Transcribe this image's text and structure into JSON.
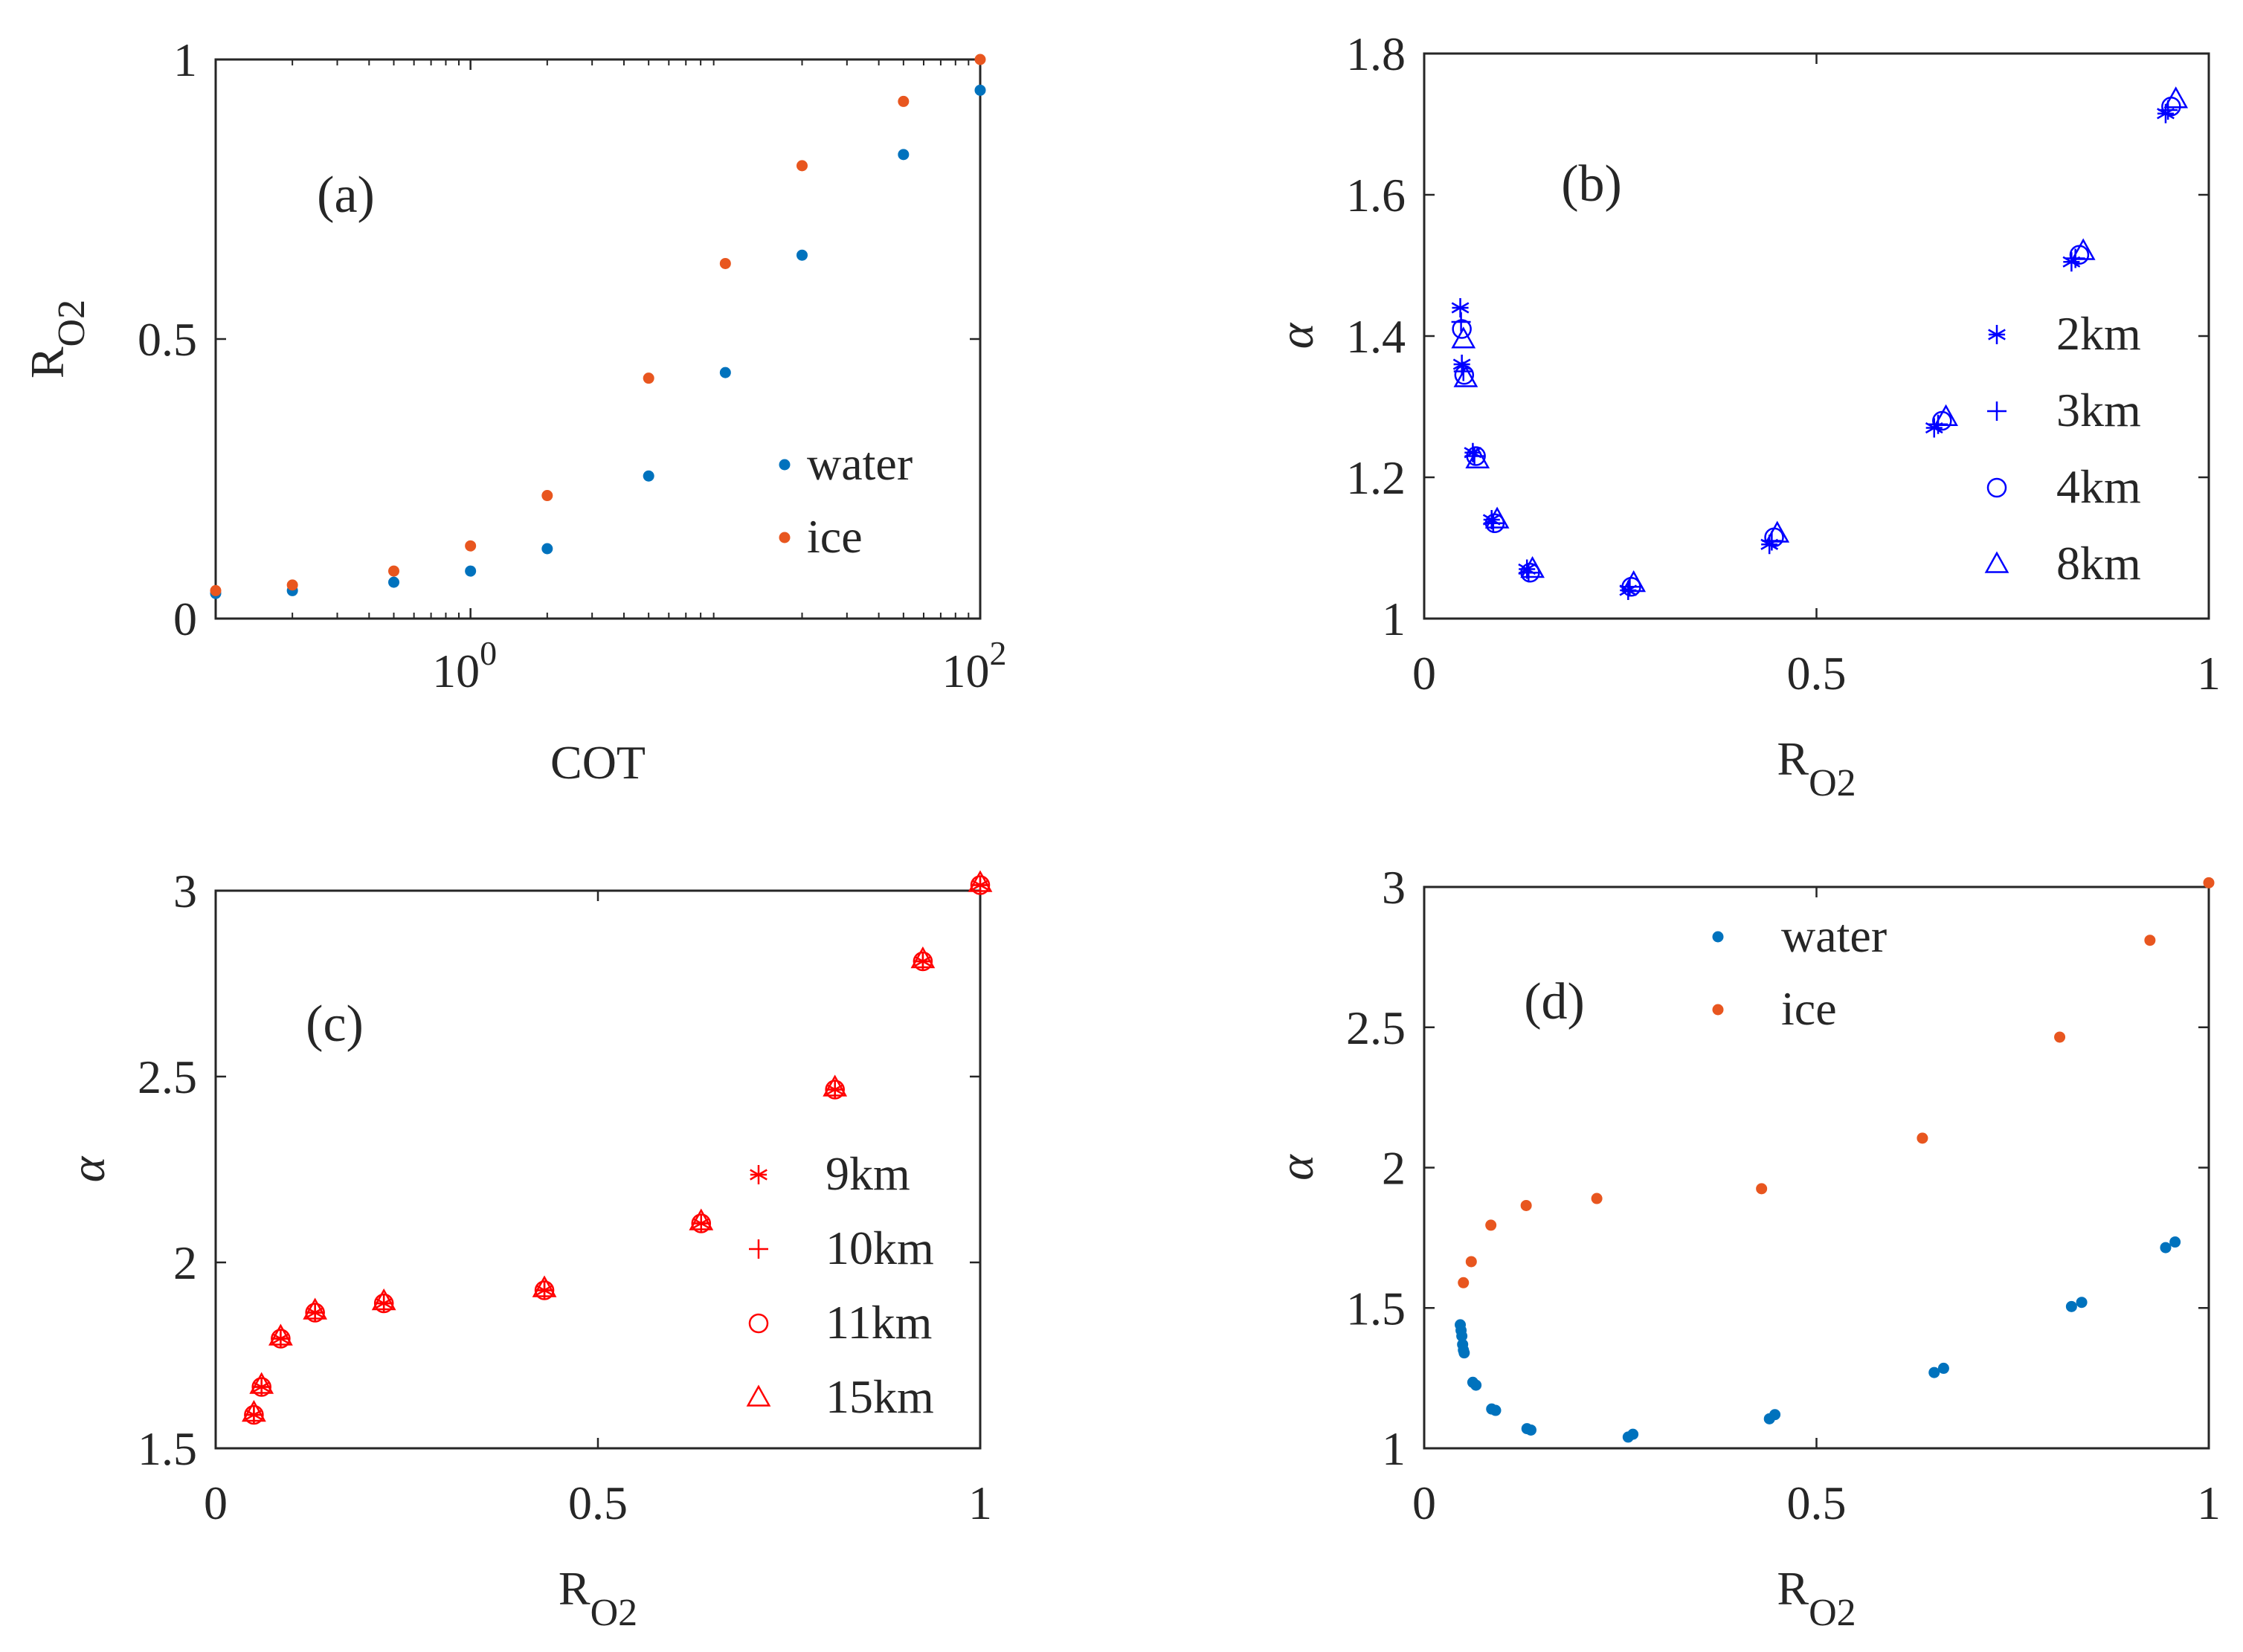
{
  "colors": {
    "water": "#0072BD",
    "ice": "#E8561F",
    "blue_markers": "#0000FF",
    "red_markers": "#FF0000",
    "axis": "#262626"
  },
  "chart_data": [
    {
      "id": "a",
      "type": "scatter",
      "panel_label": "(a)",
      "xscale": "log",
      "xlabel": "COT",
      "ylabel_main": "R",
      "ylabel_sub": "O2",
      "xlim": [
        0.1,
        100
      ],
      "ylim": [
        0,
        1
      ],
      "xticks": [
        {
          "value": 1,
          "label_base": "10",
          "label_exp": "0"
        },
        {
          "value": 100,
          "label_base": "10",
          "label_exp": "2"
        }
      ],
      "yticks": [
        {
          "value": 0,
          "label": "0"
        },
        {
          "value": 0.5,
          "label": "0.5"
        },
        {
          "value": 1,
          "label": "1"
        }
      ],
      "legend": {
        "position": "lower-right"
      },
      "series": [
        {
          "name": "water",
          "marker": "dot",
          "color": "#0072BD",
          "x": [
            0.1,
            0.2,
            0.5,
            1,
            2,
            5,
            10,
            20,
            50,
            100
          ],
          "y": [
            0.045,
            0.05,
            0.065,
            0.085,
            0.125,
            0.255,
            0.44,
            0.65,
            0.83,
            0.945
          ]
        },
        {
          "name": "ice",
          "marker": "dot",
          "color": "#E8561F",
          "x": [
            0.1,
            0.2,
            0.5,
            1,
            2,
            5,
            10,
            20,
            50,
            100
          ],
          "y": [
            0.05,
            0.06,
            0.085,
            0.13,
            0.22,
            0.43,
            0.635,
            0.81,
            0.925,
            1.0
          ]
        }
      ]
    },
    {
      "id": "b",
      "type": "scatter",
      "panel_label": "(b)",
      "xlabel_main": "R",
      "xlabel_sub": "O2",
      "ylabel": "α",
      "xlim": [
        0,
        1
      ],
      "ylim": [
        1,
        1.8
      ],
      "xticks": [
        {
          "value": 0,
          "label": "0"
        },
        {
          "value": 0.5,
          "label": "0.5"
        },
        {
          "value": 1,
          "label": "1"
        }
      ],
      "yticks": [
        {
          "value": 1,
          "label": "1"
        },
        {
          "value": 1.2,
          "label": "1.2"
        },
        {
          "value": 1.4,
          "label": "1.4"
        },
        {
          "value": 1.6,
          "label": "1.6"
        },
        {
          "value": 1.8,
          "label": "1.8"
        }
      ],
      "legend": {
        "position": "right"
      },
      "series": [
        {
          "name": "2km",
          "marker": "asterisk",
          "color": "#0000FF",
          "x": [
            0.046,
            0.048,
            0.062,
            0.086,
            0.131,
            0.26,
            0.44,
            0.65,
            0.825,
            0.945
          ],
          "y": [
            1.44,
            1.36,
            1.235,
            1.14,
            1.07,
            1.04,
            1.105,
            1.27,
            1.505,
            1.715
          ]
        },
        {
          "name": "3km",
          "marker": "plus",
          "color": "#0000FF",
          "x": [
            0.047,
            0.05,
            0.064,
            0.088,
            0.133,
            0.262,
            0.443,
            0.655,
            0.83,
            0.948
          ],
          "y": [
            1.42,
            1.35,
            1.23,
            1.135,
            1.065,
            1.045,
            1.11,
            1.275,
            1.51,
            1.72
          ]
        },
        {
          "name": "4km",
          "marker": "circle",
          "color": "#0000FF",
          "x": [
            0.048,
            0.051,
            0.066,
            0.09,
            0.135,
            0.264,
            0.446,
            0.66,
            0.835,
            0.952
          ],
          "y": [
            1.41,
            1.345,
            1.23,
            1.135,
            1.065,
            1.045,
            1.115,
            1.28,
            1.515,
            1.725
          ]
        },
        {
          "name": "8km",
          "marker": "triangle",
          "color": "#0000FF",
          "x": [
            0.05,
            0.053,
            0.068,
            0.093,
            0.138,
            0.267,
            0.45,
            0.665,
            0.84,
            0.958
          ],
          "y": [
            1.395,
            1.34,
            1.225,
            1.14,
            1.07,
            1.05,
            1.12,
            1.285,
            1.52,
            1.735
          ]
        }
      ]
    },
    {
      "id": "c",
      "type": "scatter",
      "panel_label": "(c)",
      "xlabel_main": "R",
      "xlabel_sub": "O2",
      "ylabel": "α",
      "xlim": [
        0,
        1
      ],
      "ylim": [
        1.5,
        3
      ],
      "xticks": [
        {
          "value": 0,
          "label": "0"
        },
        {
          "value": 0.5,
          "label": "0.5"
        },
        {
          "value": 1,
          "label": "1"
        }
      ],
      "yticks": [
        {
          "value": 1.5,
          "label": "1.5"
        },
        {
          "value": 2,
          "label": "2"
        },
        {
          "value": 2.5,
          "label": "2.5"
        },
        {
          "value": 3,
          "label": "3"
        }
      ],
      "legend": {
        "position": "lower-right"
      },
      "series": [
        {
          "name": "9km",
          "marker": "asterisk",
          "color": "#FF0000",
          "x": [
            0.05,
            0.06,
            0.085,
            0.13,
            0.22,
            0.43,
            0.635,
            0.81,
            0.925,
            1.0
          ],
          "y": [
            1.59,
            1.665,
            1.795,
            1.865,
            1.89,
            1.925,
            2.105,
            2.465,
            2.81,
            3.015
          ]
        },
        {
          "name": "10km",
          "marker": "plus",
          "color": "#FF0000",
          "x": [
            0.05,
            0.06,
            0.085,
            0.13,
            0.22,
            0.43,
            0.635,
            0.81,
            0.925,
            1.0
          ],
          "y": [
            1.59,
            1.665,
            1.795,
            1.865,
            1.89,
            1.925,
            2.105,
            2.465,
            2.81,
            3.015
          ]
        },
        {
          "name": "11km",
          "marker": "circle",
          "color": "#FF0000",
          "x": [
            0.05,
            0.06,
            0.085,
            0.13,
            0.22,
            0.43,
            0.635,
            0.81,
            0.925,
            1.0
          ],
          "y": [
            1.59,
            1.665,
            1.795,
            1.865,
            1.89,
            1.925,
            2.105,
            2.465,
            2.81,
            3.015
          ]
        },
        {
          "name": "15km",
          "marker": "triangle",
          "color": "#FF0000",
          "x": [
            0.05,
            0.06,
            0.085,
            0.13,
            0.22,
            0.43,
            0.635,
            0.81,
            0.925,
            1.0
          ],
          "y": [
            1.595,
            1.67,
            1.8,
            1.87,
            1.895,
            1.93,
            2.11,
            2.47,
            2.815,
            3.02
          ]
        }
      ]
    },
    {
      "id": "d",
      "type": "scatter",
      "panel_label": "(d)",
      "xlabel_main": "R",
      "xlabel_sub": "O2",
      "ylabel": "α",
      "xlim": [
        0,
        1
      ],
      "ylim": [
        1,
        3
      ],
      "xticks": [
        {
          "value": 0,
          "label": "0"
        },
        {
          "value": 0.5,
          "label": "0.5"
        },
        {
          "value": 1,
          "label": "1"
        }
      ],
      "yticks": [
        {
          "value": 1,
          "label": "1"
        },
        {
          "value": 1.5,
          "label": "1.5"
        },
        {
          "value": 2,
          "label": "2"
        },
        {
          "value": 2.5,
          "label": "2.5"
        },
        {
          "value": 3,
          "label": "3"
        }
      ],
      "legend": {
        "position": "upper-middle"
      },
      "series": [
        {
          "name": "water",
          "marker": "dot",
          "color": "#0072BD",
          "x": [
            0.046,
            0.047,
            0.048,
            0.049,
            0.05,
            0.051,
            0.062,
            0.066,
            0.086,
            0.091,
            0.131,
            0.136,
            0.26,
            0.266,
            0.44,
            0.447,
            0.65,
            0.662,
            0.825,
            0.838,
            0.945,
            0.957
          ],
          "y": [
            1.44,
            1.42,
            1.4,
            1.37,
            1.35,
            1.34,
            1.235,
            1.225,
            1.14,
            1.135,
            1.07,
            1.065,
            1.04,
            1.05,
            1.105,
            1.12,
            1.27,
            1.285,
            1.505,
            1.52,
            1.715,
            1.735
          ]
        },
        {
          "name": "ice",
          "marker": "dot",
          "color": "#E8561F",
          "x": [
            0.05,
            0.06,
            0.085,
            0.13,
            0.22,
            0.43,
            0.635,
            0.81,
            0.925,
            1.0
          ],
          "y": [
            1.59,
            1.665,
            1.795,
            1.865,
            1.89,
            1.925,
            2.105,
            2.465,
            2.81,
            3.015
          ]
        }
      ]
    }
  ]
}
